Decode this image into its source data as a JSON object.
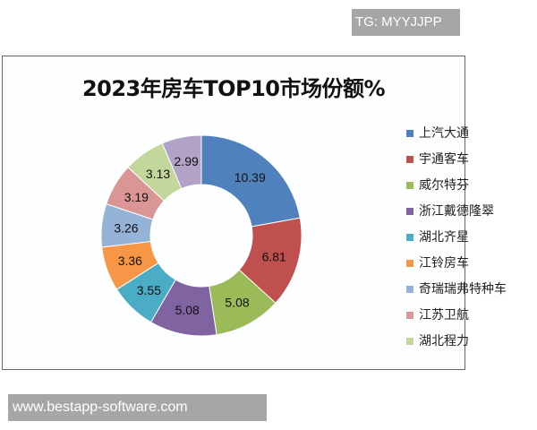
{
  "overlay": {
    "top_tag": "TG: MYYJJPP",
    "bottom_tag": "www.bestapp-software.com"
  },
  "chart_data": {
    "type": "pie",
    "donut": true,
    "title": "2023年房车TOP10市场份额%",
    "categories": [
      "上汽大通",
      "宇通客车",
      "威尔特芬",
      "浙江戴德隆翠",
      "湖北齐星",
      "江铃房车",
      "奇瑞瑞弗特种车",
      "江苏卫航",
      "湖北程力",
      ""
    ],
    "values": [
      10.39,
      6.81,
      5.08,
      5.08,
      3.55,
      3.36,
      3.26,
      3.19,
      3.13,
      2.99
    ],
    "data_labels": [
      "10.39",
      "6.81",
      "5.08",
      "5.08",
      "3.55",
      "3.36",
      "3.26",
      "3.19",
      "3.13",
      "2.99"
    ],
    "colors": [
      "#4f81bd",
      "#c0504d",
      "#9bbb59",
      "#8064a2",
      "#4bacc6",
      "#f79646",
      "#95b3d7",
      "#d99694",
      "#c3d69b",
      "#b2a2c7"
    ],
    "legend_position": "right"
  }
}
